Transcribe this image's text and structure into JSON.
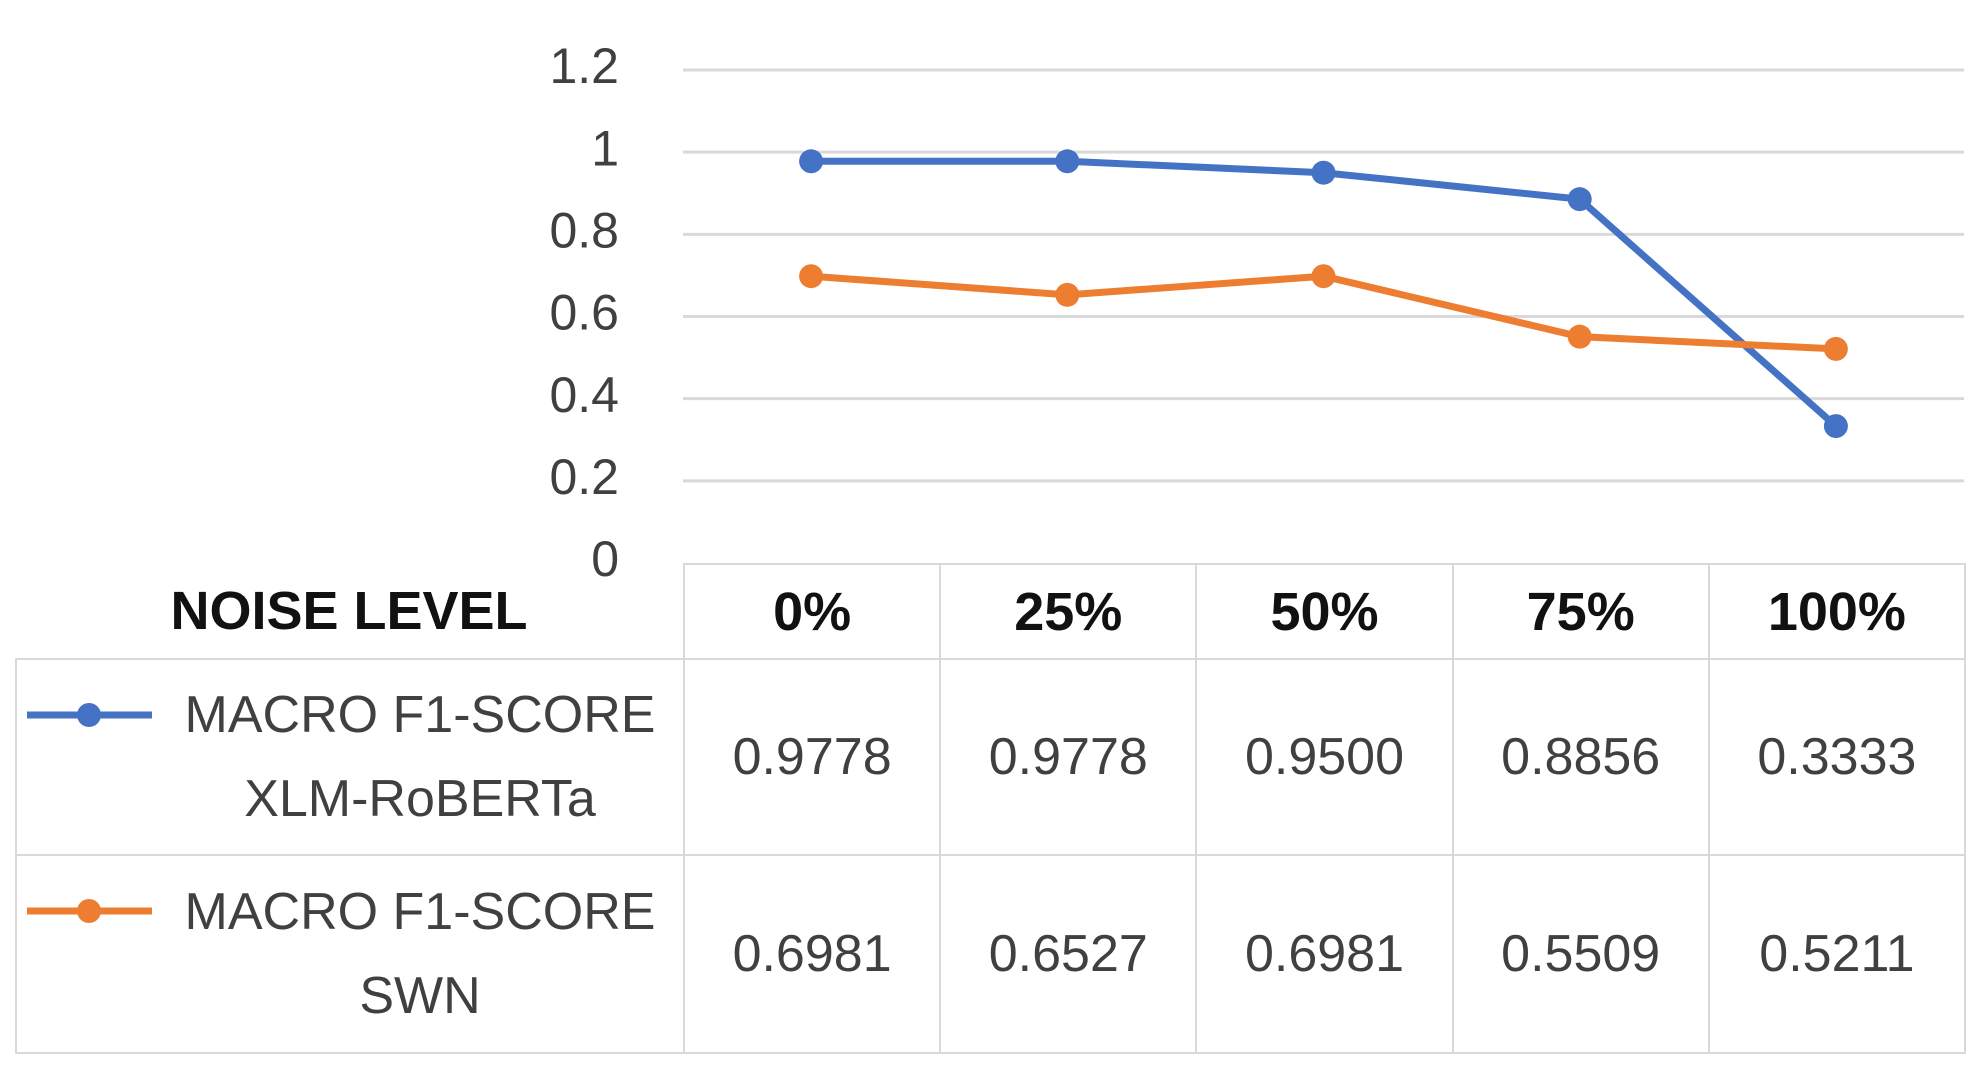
{
  "chart_data": {
    "type": "line",
    "x_label": "NOISE LEVEL",
    "categories": [
      "0%",
      "25%",
      "50%",
      "75%",
      "100%"
    ],
    "series": [
      {
        "name": "MACRO F1-SCORE XLM-RoBERTa",
        "color": "#4472c4",
        "values": [
          0.9778,
          0.9778,
          0.95,
          0.8856,
          0.3333
        ],
        "value_labels": [
          "0.9778",
          "0.9778",
          "0.9500",
          "0.8856",
          "0.3333"
        ]
      },
      {
        "name": "MACRO F1-SCORE SWN",
        "color": "#ed7d31",
        "values": [
          0.6981,
          0.6527,
          0.6981,
          0.5509,
          0.5211
        ]
      }
    ],
    "ylim": [
      0,
      1.2
    ],
    "yticks": [
      0,
      0.2,
      0.4,
      0.6,
      0.8,
      1,
      1.2
    ],
    "grid": true
  }
}
